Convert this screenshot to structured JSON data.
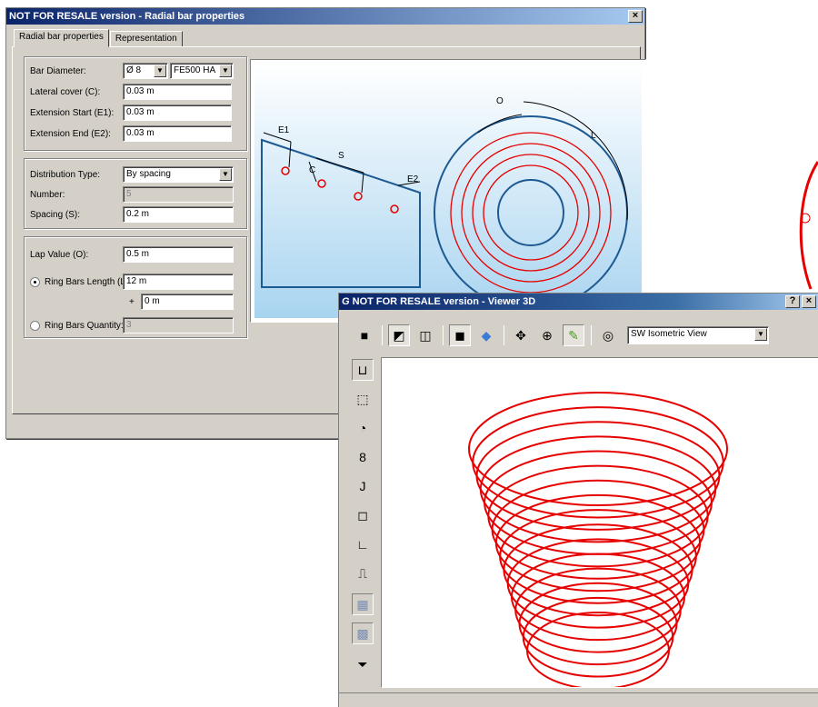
{
  "dialog": {
    "title": "NOT FOR RESALE version - Radial bar properties",
    "close_label": "×",
    "tabs": [
      "Radial bar properties",
      "Representation"
    ],
    "bar": {
      "diameter_label": "Bar Diameter:",
      "diameter_value": "Ø 8",
      "steel_grade": "FE500 HA",
      "lateral_cover_label": "Lateral cover (C):",
      "lateral_cover_value": "0.03 m",
      "ext_start_label": "Extension Start (E1):",
      "ext_start_value": "0.03 m",
      "ext_end_label": "Extension End (E2):",
      "ext_end_value": "0.03 m"
    },
    "distribution": {
      "type_label": "Distribution Type:",
      "type_value": "By spacing",
      "number_label": "Number:",
      "number_value": "5",
      "spacing_label": "Spacing (S):",
      "spacing_value": "0.2 m"
    },
    "lap": {
      "lap_label": "Lap Value (O):",
      "lap_value": "0.5 m",
      "ring_length_label": "Ring Bars Length (L):",
      "ring_length_value": "12 m",
      "plus_label": "+",
      "extra_value": "0 m",
      "ring_qty_label": "Ring Bars Quantity:",
      "ring_qty_value": "3",
      "selected": "ring_length"
    },
    "diagram_labels": {
      "e1": "E1",
      "c": "C",
      "s": "S",
      "e2": "E2",
      "o": "O",
      "l": "L"
    }
  },
  "viewer": {
    "title": "NOT FOR RESALE version - Viewer 3D",
    "help_label": "?",
    "close_label": "×",
    "view_mode": "SW Isometric View",
    "toolbar_icons": [
      "stop-icon",
      "shaded-cube-icon",
      "wireframe-cube-icon",
      "render-icon",
      "solid-cube-icon",
      "pan-icon",
      "zoom-icon",
      "light-icon",
      "zoom-extents-icon"
    ],
    "side_icons": [
      "shape-u-icon",
      "shape-hook-icon",
      "shape-circle-icon",
      "shape-eight-icon",
      "shape-j-icon",
      "shape-closed-u-icon",
      "shape-l-icon",
      "shape-wave-icon",
      "mesh-icon",
      "mesh-3d-icon",
      "filter-icon"
    ],
    "ring_count": 16,
    "ring_color": "#e60000"
  },
  "colors": {
    "title_dark": "#0a246a",
    "bar_red": "#e60000",
    "preview_blue": "#2a6fa8"
  }
}
